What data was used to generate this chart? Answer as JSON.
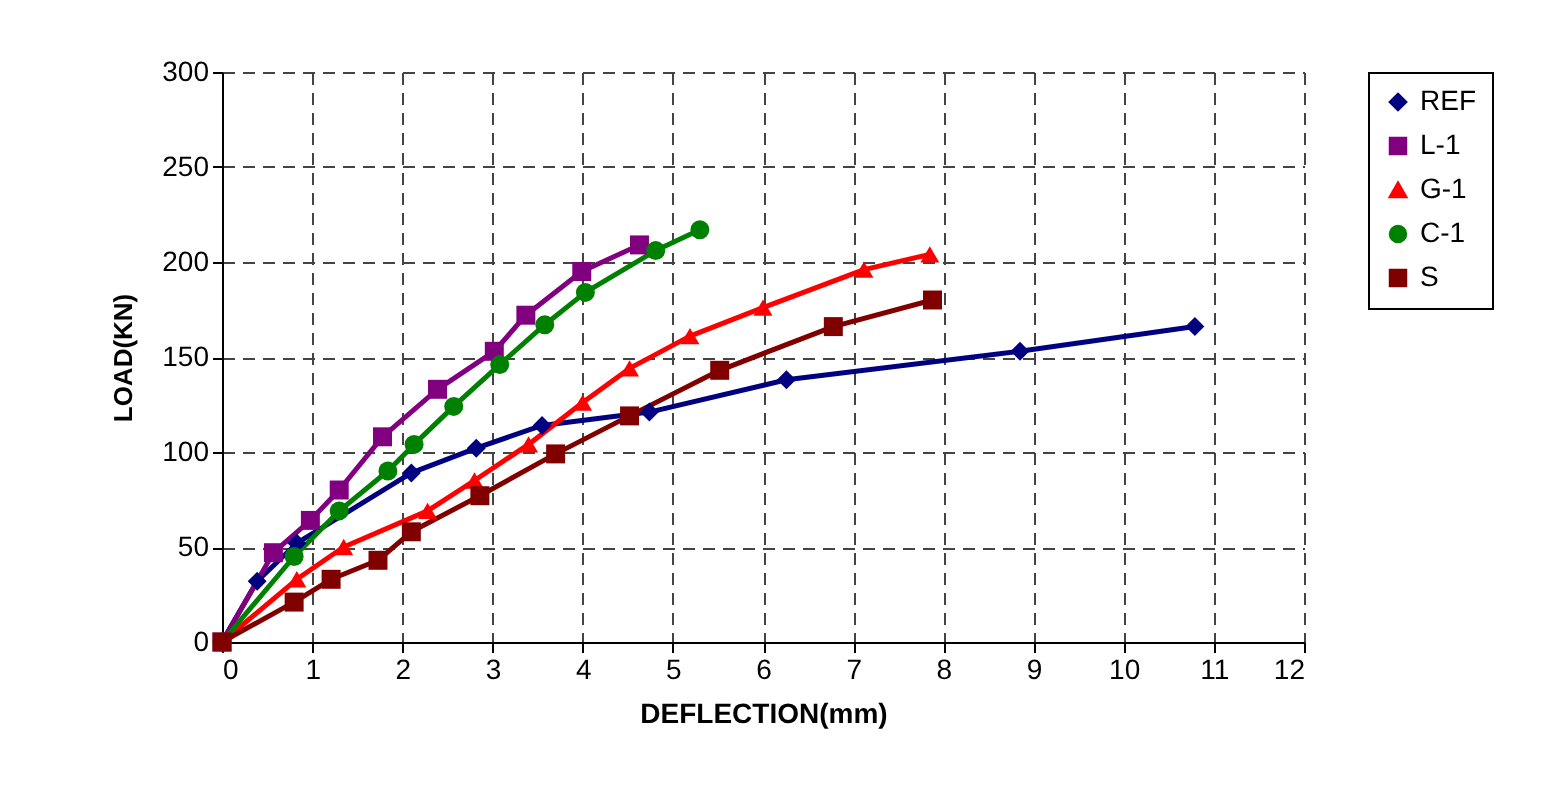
{
  "chart_data": {
    "type": "line",
    "xlabel": "DEFLECTION(mm)",
    "ylabel": "LOAD(KN)",
    "xlim": [
      0,
      12
    ],
    "xticks": [
      0,
      1,
      2,
      3,
      4,
      5,
      6,
      7,
      8,
      9,
      10,
      11,
      12
    ],
    "ylim": [
      0,
      300
    ],
    "yticks": [
      0,
      50,
      100,
      150,
      200,
      250,
      300
    ],
    "grid": true,
    "legend": "right",
    "line_style": "solid",
    "series": [
      {
        "name": "REF",
        "color": "#000080",
        "marker": "diamond",
        "x": [
          0,
          0.39,
          0.83,
          2.1,
          2.82,
          3.55,
          4.74,
          6.26,
          8.85,
          10.79
        ],
        "values": [
          0,
          32,
          52,
          89,
          102,
          114,
          121,
          138,
          153,
          166
        ]
      },
      {
        "name": "L-1",
        "color": "#800080",
        "marker": "square",
        "x": [
          0,
          0.57,
          0.98,
          1.3,
          1.78,
          2.39,
          3.02,
          3.37,
          3.99,
          4.63
        ],
        "values": [
          0,
          47,
          64,
          80,
          108,
          133,
          153,
          172,
          195,
          209
        ]
      },
      {
        "name": "G-1",
        "color": "#ff0000",
        "marker": "triangle",
        "x": [
          0,
          0.83,
          1.35,
          2.28,
          2.8,
          3.4,
          4.0,
          4.52,
          5.19,
          6.0,
          7.12,
          7.85
        ],
        "values": [
          0,
          33,
          50,
          69,
          85,
          104,
          126,
          144,
          161,
          176,
          196,
          204
        ]
      },
      {
        "name": "C-1",
        "color": "#008000",
        "marker": "circle",
        "x": [
          0,
          0.8,
          1.3,
          1.84,
          2.13,
          2.57,
          3.08,
          3.58,
          4.03,
          4.81,
          5.3
        ],
        "values": [
          0,
          45,
          69,
          90,
          104,
          124,
          146,
          167,
          184,
          206,
          217
        ]
      },
      {
        "name": "S",
        "color": "#800000",
        "marker": "square",
        "x": [
          0,
          0.8,
          1.21,
          1.73,
          2.1,
          2.86,
          3.7,
          4.52,
          5.52,
          6.78,
          7.88
        ],
        "values": [
          0,
          21,
          33,
          43,
          58,
          77,
          99,
          119,
          143,
          166,
          180
        ]
      }
    ]
  }
}
